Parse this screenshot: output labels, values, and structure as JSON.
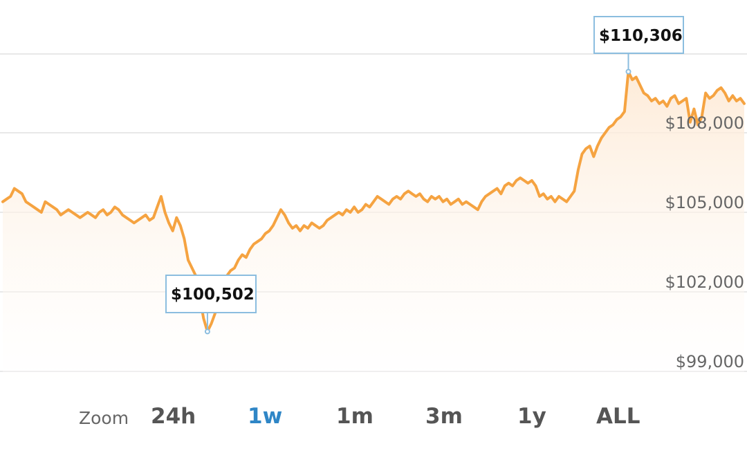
{
  "colors": {
    "line": "#f5a341",
    "fill_top": "#fde9d4",
    "grid": "#e8e8e8",
    "callout_border": "#8bbddf",
    "active_zoom": "#2f86c6"
  },
  "chart_data": {
    "type": "area",
    "ylim": [
      97000,
      111000
    ],
    "yticks": [
      {
        "value": 108000,
        "label": "$108,000"
      },
      {
        "value": 105000,
        "label": "$105,000"
      },
      {
        "value": 102000,
        "label": "$102,000"
      },
      {
        "value": 99000,
        "label": "$99,000"
      }
    ],
    "grid": true,
    "values": [
      105400,
      105500,
      105600,
      105900,
      105800,
      105700,
      105400,
      105300,
      105200,
      105100,
      105000,
      105400,
      105300,
      105200,
      105100,
      104900,
      105000,
      105100,
      105000,
      104900,
      104800,
      104900,
      105000,
      104900,
      104800,
      105000,
      105100,
      104900,
      105000,
      105200,
      105100,
      104900,
      104800,
      104700,
      104600,
      104700,
      104800,
      104900,
      104700,
      104800,
      105200,
      105600,
      105000,
      104600,
      104300,
      104800,
      104500,
      104000,
      103200,
      102900,
      102600,
      101800,
      101000,
      100502,
      100800,
      101200,
      101600,
      102200,
      102600,
      102800,
      102900,
      103200,
      103400,
      103300,
      103600,
      103800,
      103900,
      104000,
      104200,
      104300,
      104500,
      104800,
      105100,
      104900,
      104600,
      104400,
      104500,
      104300,
      104500,
      104400,
      104600,
      104500,
      104400,
      104500,
      104700,
      104800,
      104900,
      105000,
      104900,
      105100,
      105000,
      105200,
      105000,
      105100,
      105300,
      105200,
      105400,
      105600,
      105500,
      105400,
      105300,
      105500,
      105600,
      105500,
      105700,
      105800,
      105700,
      105600,
      105700,
      105500,
      105400,
      105600,
      105500,
      105600,
      105400,
      105500,
      105300,
      105400,
      105500,
      105300,
      105400,
      105300,
      105200,
      105100,
      105400,
      105600,
      105700,
      105800,
      105900,
      105700,
      106000,
      106100,
      106000,
      106200,
      106300,
      106200,
      106100,
      106200,
      106000,
      105600,
      105700,
      105500,
      105600,
      105400,
      105600,
      105500,
      105400,
      105600,
      105800,
      106600,
      107200,
      107400,
      107500,
      107100,
      107500,
      107800,
      108000,
      108200,
      108300,
      108500,
      108600,
      108800,
      110306,
      110000,
      110100,
      109800,
      109500,
      109400,
      109200,
      109300,
      109100,
      109200,
      109000,
      109300,
      109400,
      109100,
      109200,
      109300,
      108400,
      108900,
      108300,
      108600,
      109500,
      109300,
      109400,
      109600,
      109700,
      109500,
      109200,
      109400,
      109200,
      109300,
      109100
    ]
  },
  "callouts": {
    "high": {
      "label": "$110,306",
      "value": 110306
    },
    "low": {
      "label": "$100,502",
      "value": 100502
    }
  },
  "zoom": {
    "label": "Zoom",
    "options": [
      "24h",
      "1w",
      "1m",
      "3m",
      "1y",
      "ALL"
    ],
    "active": "1w"
  }
}
